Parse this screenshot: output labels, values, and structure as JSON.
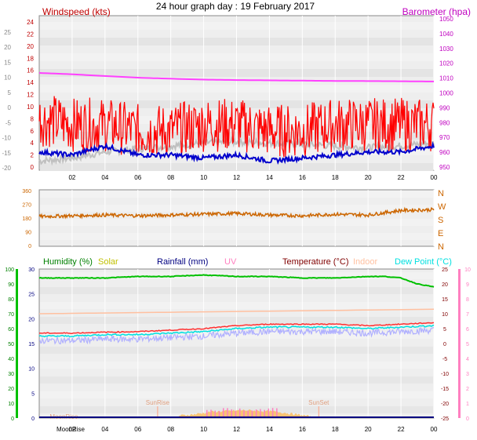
{
  "chart_data": [
    {
      "type": "line",
      "title": "24 hour graph day : 19 February 2017",
      "y_left_label": "Windspeed (kts)",
      "y_left_ticks": [
        "24",
        "22",
        "20",
        "18",
        "16",
        "14",
        "12",
        "10",
        "8",
        "6",
        "4",
        "2",
        "0"
      ],
      "y_far_left_ticks": [
        "25",
        "20",
        "15",
        "10",
        "5",
        "0",
        "-5",
        "-10",
        "-15",
        "-20"
      ],
      "y_right_label": "Barometer (hpa)",
      "y_right_ticks": [
        "1050",
        "1040",
        "1030",
        "1020",
        "1010",
        "1000",
        "990",
        "980",
        "970",
        "960",
        "950"
      ],
      "x_ticks": [
        "02",
        "04",
        "06",
        "08",
        "10",
        "12",
        "14",
        "16",
        "18",
        "20",
        "22",
        "00"
      ],
      "series": [
        {
          "name": "Barometer (hpa)",
          "color": "#ff40ff",
          "x": [
            0,
            2,
            4,
            6,
            8,
            10,
            12,
            14,
            16,
            18,
            20,
            22,
            24
          ],
          "values": [
            1013.5,
            1012.6,
            1011.4,
            1010.3,
            1009.6,
            1009.0,
            1008.7,
            1008.5,
            1008.3,
            1008.1,
            1008.0,
            1007.9,
            1007.7
          ]
        },
        {
          "color": "#c0c0c0",
          "x": [
            0,
            2,
            4,
            6,
            8,
            10,
            12,
            14,
            16,
            18,
            20,
            22,
            24
          ],
          "values": [
            1.0,
            1.5,
            2.5,
            3.0,
            3.5,
            4.0,
            4.2,
            4.0,
            3.8,
            3.5,
            3.2,
            3.5,
            4.0
          ]
        },
        {
          "color": "#ff0000",
          "x": [
            0,
            2,
            4,
            6,
            8,
            10,
            12,
            14,
            16,
            18,
            20,
            22,
            24
          ],
          "values": [
            8,
            7,
            7,
            6,
            6,
            7,
            7,
            6,
            6,
            7,
            7,
            7,
            7
          ]
        },
        {
          "color": "#0000cc",
          "x": [
            0,
            2,
            4,
            6,
            8,
            10,
            12,
            14,
            16,
            18,
            20,
            22,
            24
          ],
          "values": [
            2.5,
            2.0,
            3.5,
            2.0,
            2.0,
            1.5,
            2.0,
            1.0,
            1.5,
            2.0,
            2.5,
            2.5,
            3.5
          ]
        }
      ]
    },
    {
      "type": "line",
      "y_left_ticks": [
        "360",
        "270",
        "180",
        "90",
        "0"
      ],
      "y_right_ticks": [
        "N",
        "W",
        "S",
        "E",
        "N"
      ],
      "x_ticks": [
        "02",
        "04",
        "06",
        "08",
        "10",
        "12",
        "14",
        "16",
        "18",
        "20",
        "22",
        "00"
      ],
      "series": [
        {
          "color": "#cc6600",
          "x": [
            0,
            2,
            4,
            6,
            8,
            10,
            12,
            14,
            16,
            18,
            20,
            22,
            24
          ],
          "values": [
            190,
            195,
            200,
            195,
            200,
            205,
            210,
            200,
            195,
            205,
            200,
            230,
            235
          ]
        }
      ]
    },
    {
      "type": "line",
      "legend": [
        {
          "label": "Humidity (%)",
          "color": "#008000"
        },
        {
          "label": "Solar",
          "color": "#c0c000"
        },
        {
          "label": "Rainfall (mm)",
          "color": "#000080"
        },
        {
          "label": "UV",
          "color": "#ff80c0"
        },
        {
          "label": "Temperature (°C)",
          "color": "#800000"
        },
        {
          "label": "Indoor",
          "color": "#ffc0a0"
        },
        {
          "label": "Dew Point (°C)",
          "color": "#00e0e0"
        }
      ],
      "y_humidity_ticks": [
        "100",
        "90",
        "80",
        "70",
        "60",
        "50",
        "40",
        "30",
        "20",
        "10",
        "0"
      ],
      "y_rain_ticks": [
        "30",
        "25",
        "20",
        "15",
        "10",
        "5",
        "0"
      ],
      "y_temp_ticks": [
        "25",
        "20",
        "15",
        "10",
        "5",
        "0",
        "-5",
        "-10",
        "-15",
        "-20",
        "-25"
      ],
      "y_far_right_ticks": [
        "10",
        "9",
        "8",
        "7",
        "6",
        "5",
        "4",
        "3",
        "2",
        "1",
        "0"
      ],
      "x_ticks": [
        "MoonRise",
        "02",
        "04",
        "06",
        "08",
        "10",
        "12",
        "14",
        "16",
        "18",
        "20",
        "22",
        "00"
      ],
      "annotations": [
        {
          "label": "SunRise",
          "hour": 7.2
        },
        {
          "label": "SunSet",
          "hour": 17.0
        },
        {
          "label": "MoonRise",
          "hour": 1.5
        }
      ],
      "series": [
        {
          "name": "Humidity (%)",
          "color": "#00c000",
          "x": [
            0,
            2,
            4,
            6,
            8,
            10,
            12,
            14,
            16,
            18,
            20,
            21,
            22,
            23,
            24
          ],
          "values": [
            94,
            94,
            94,
            95,
            95,
            96,
            95,
            95,
            94,
            94,
            95,
            95,
            94,
            90,
            88
          ]
        },
        {
          "name": "Temperature (°C)",
          "color": "#ff3030",
          "x": [
            0,
            2,
            4,
            6,
            8,
            10,
            12,
            14,
            16,
            18,
            20,
            22,
            24
          ],
          "values": [
            3.5,
            3.5,
            3.8,
            4.0,
            4.5,
            5.0,
            6.0,
            6.5,
            6.5,
            6.5,
            6.0,
            6.5,
            7.0
          ]
        },
        {
          "name": "Dew Point (°C)",
          "color": "#00e0e0",
          "x": [
            0,
            2,
            4,
            6,
            8,
            10,
            12,
            14,
            16,
            18,
            20,
            22,
            24
          ],
          "values": [
            2.5,
            2.5,
            3.0,
            3.0,
            3.5,
            4.0,
            5.0,
            5.5,
            5.5,
            5.5,
            5.0,
            5.5,
            6.0
          ]
        },
        {
          "name": "Indoor",
          "color": "#ffc0a0",
          "x": [
            0,
            24
          ],
          "values": [
            10.0,
            11.5
          ]
        },
        {
          "name": "Solar",
          "color": "#ffb040",
          "x": [
            8.5,
            9.5,
            10.5,
            11.5,
            12.5,
            13.5,
            14.5,
            15.5,
            16.5
          ],
          "values": [
            0.3,
            0.5,
            0.8,
            0.9,
            1.0,
            0.9,
            0.8,
            0.5,
            0.2
          ]
        }
      ]
    }
  ]
}
